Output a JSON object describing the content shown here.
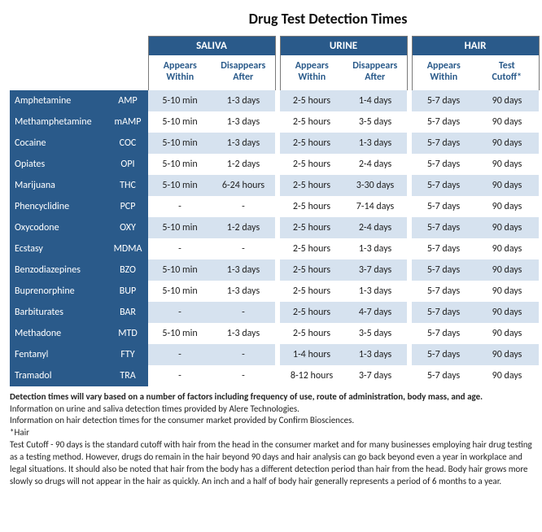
{
  "title": "Drug Test Detection Times",
  "colors": {
    "header_bg": "#2a5a8a",
    "header_text": "#ffffff",
    "subheader_text": "#2a5a8a",
    "row_even_bg": "#d6e2ef",
    "row_odd_bg": "#ffffff",
    "border": "#7a7a7a"
  },
  "groups": [
    {
      "label": "SALIVA",
      "sub": [
        "Appears Within",
        "Disappears After"
      ]
    },
    {
      "label": "URINE",
      "sub": [
        "Appears Within",
        "Disappears After"
      ]
    },
    {
      "label": "HAIR",
      "sub": [
        "Appears Within",
        "Test Cutoff*"
      ]
    }
  ],
  "rows": [
    {
      "name": "Amphetamine",
      "abbr": "AMP",
      "v": [
        "5-10 min",
        "1-3 days",
        "2-5 hours",
        "1-4 days",
        "5-7 days",
        "90 days"
      ]
    },
    {
      "name": "Methamphetamine",
      "abbr": "mAMP",
      "v": [
        "5-10 min",
        "1-3 days",
        "2-5 hours",
        "3-5 days",
        "5-7 days",
        "90 days"
      ]
    },
    {
      "name": "Cocaine",
      "abbr": "COC",
      "v": [
        "5-10 min",
        "1-3 days",
        "2-5 hours",
        "1-3 days",
        "5-7 days",
        "90 days"
      ]
    },
    {
      "name": "Opiates",
      "abbr": "OPI",
      "v": [
        "5-10 min",
        "1-2 days",
        "2-5 hours",
        "2-4 days",
        "5-7 days",
        "90 days"
      ]
    },
    {
      "name": "Marijuana",
      "abbr": "THC",
      "v": [
        "5-10 min",
        "6-24 hours",
        "2-5 hours",
        "3-30 days",
        "5-7 days",
        "90 days"
      ]
    },
    {
      "name": "Phencyclidine",
      "abbr": "PCP",
      "v": [
        "-",
        "-",
        "2-5 hours",
        "7-14 days",
        "5-7 days",
        "90 days"
      ]
    },
    {
      "name": "Oxycodone",
      "abbr": "OXY",
      "v": [
        "5-10 min",
        "1-2 days",
        "2-5 hours",
        "2-4 days",
        "5-7 days",
        "90 days"
      ]
    },
    {
      "name": "Ecstasy",
      "abbr": "MDMA",
      "v": [
        "-",
        "-",
        "2-5 hours",
        "1-3 days",
        "5-7 days",
        "90 days"
      ]
    },
    {
      "name": "Benzodiazepines",
      "abbr": "BZO",
      "v": [
        "5-10 min",
        "1-3 days",
        "2-5 hours",
        "3-7 days",
        "5-7 days",
        "90 days"
      ]
    },
    {
      "name": "Buprenorphine",
      "abbr": "BUP",
      "v": [
        "5-10 min",
        "1-3 days",
        "2-5 hours",
        "1-3 days",
        "5-7 days",
        "90 days"
      ]
    },
    {
      "name": "Barbiturates",
      "abbr": "BAR",
      "v": [
        "-",
        "-",
        "2-5 hours",
        "4-7 days",
        "5-7 days",
        "90 days"
      ]
    },
    {
      "name": "Methadone",
      "abbr": "MTD",
      "v": [
        "5-10 min",
        "1-3 days",
        "2-5 hours",
        "3-5 days",
        "5-7 days",
        "90 days"
      ]
    },
    {
      "name": "Fentanyl",
      "abbr": "FTY",
      "v": [
        "-",
        "-",
        "1-4 hours",
        "1-3 days",
        "5-7 days",
        "90 days"
      ]
    },
    {
      "name": "Tramadol",
      "abbr": "TRA",
      "v": [
        "-",
        "-",
        "8-12 hours",
        "3-7 days",
        "5-7 days",
        "90 days"
      ]
    }
  ],
  "footnotes": {
    "line1": "Detection times will vary based on a number of factors including frequency of use, route of administration, body mass, and age.",
    "line2": "Information on urine and saliva detection times provided by Alere Technologies.",
    "line3": "Information on hair detection times for the consumer market provided by Confirm Biosciences.",
    "line4": "*Hair Test Cutoff - 90 days is the standard cutoff with hair from the head in the consumer market and for many businesses employing hair drug testing as a testing method.  However, drugs do remain in the hair beyond 90 days and hair analysis can go back beyond even a year in workplace and legal situations.  It should also be noted that hair from the body has a different detection period than hair from the head.  Body hair grows more slowly so drugs will not appear in the hair as quickly.  An inch and a half of body hair generally represents a period of 6 months to a year."
  }
}
